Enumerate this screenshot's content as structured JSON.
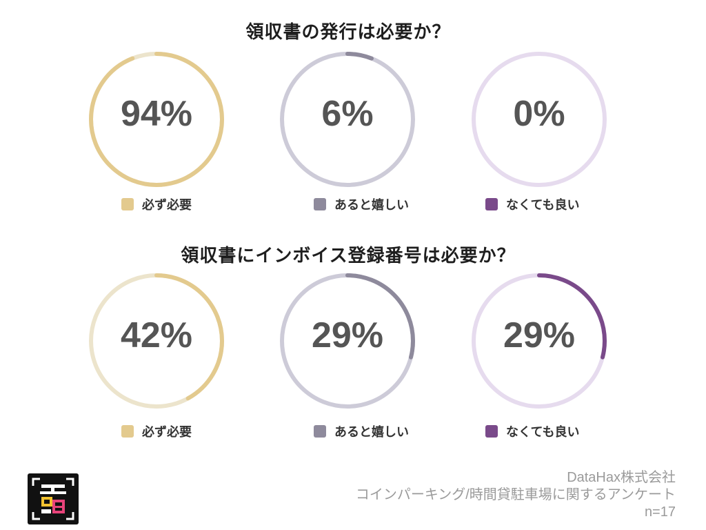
{
  "chart_data": [
    {
      "type": "pie",
      "title": "領収書の発行は必要か？",
      "series": [
        {
          "name": "必ず必要",
          "value": 94
        },
        {
          "name": "あると嬉しい",
          "value": 6
        },
        {
          "name": "なくても良い",
          "value": 0
        }
      ],
      "value_labels": [
        "94%",
        "6%",
        "0%"
      ]
    },
    {
      "type": "pie",
      "title": "領収書にインボイス登録番号は必要か？",
      "series": [
        {
          "name": "必ず必要",
          "value": 42
        },
        {
          "name": "あると嬉しい",
          "value": 29
        },
        {
          "name": "なくても良い",
          "value": 29
        }
      ],
      "value_labels": [
        "42%",
        "29%",
        "29%"
      ]
    }
  ],
  "colors": {
    "series": [
      "#e3ca8e",
      "#8e8a9c",
      "#7a4a8a"
    ],
    "tracks": [
      "#ece4cc",
      "#cdcbd8",
      "#e6dbee"
    ],
    "text": "#555555"
  },
  "footer": {
    "company": "DataHax株式会社",
    "survey": "コインパーキング/時間貸駐車場に関するアンケート",
    "n": "n=17"
  },
  "logo_icon": "datahax-logo-icon"
}
